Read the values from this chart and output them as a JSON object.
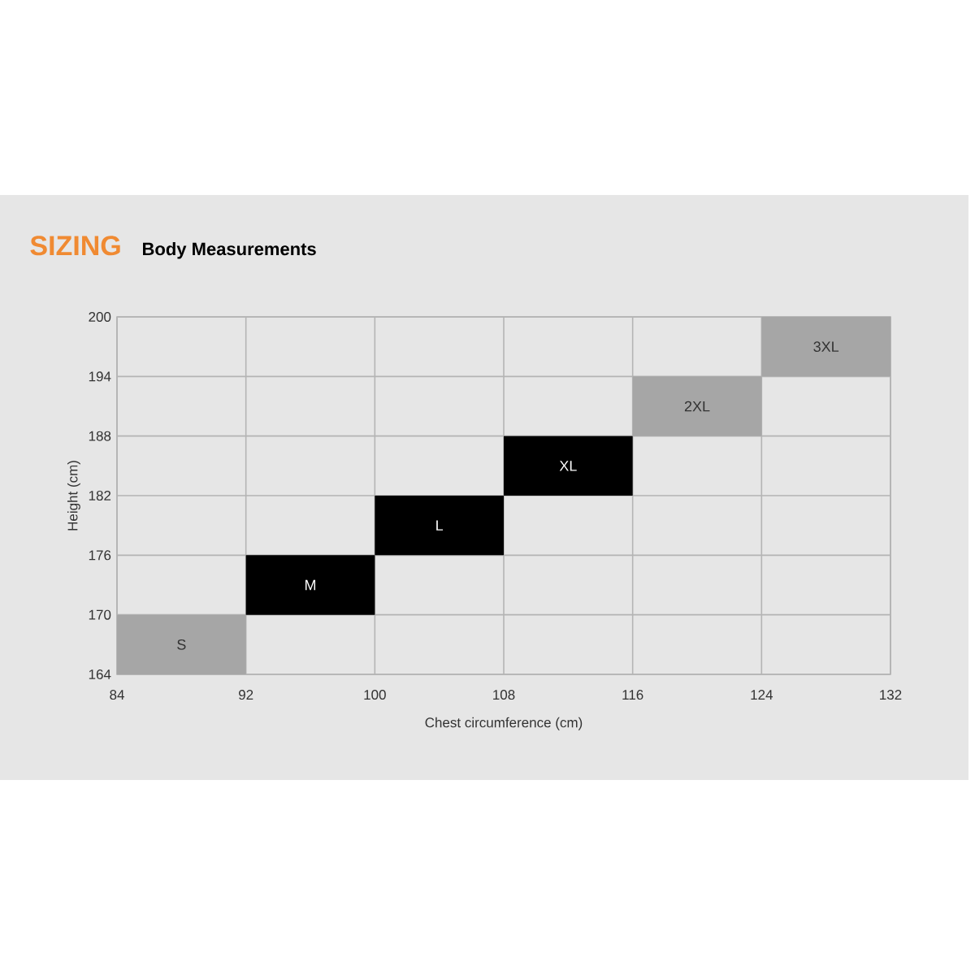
{
  "chart_data": {
    "type": "bar",
    "title": "SIZING",
    "subtitle": "Body Measurements",
    "xlabel": "Chest circumference (cm)",
    "ylabel": "Height (cm)",
    "x": [
      88,
      96,
      104,
      112,
      120,
      128
    ],
    "base": [
      164,
      170,
      176,
      182,
      188,
      194
    ],
    "values": [
      6,
      6,
      6,
      6,
      6,
      6
    ],
    "colors": [
      "#a6a6a6",
      "#000000",
      "#000000",
      "#000000",
      "#a6a6a6",
      "#a6a6a6"
    ],
    "annotations": [
      {
        "text": "S",
        "x": 88,
        "y": 170
      },
      {
        "text": "M",
        "x": 96,
        "y": 176
      },
      {
        "text": "L",
        "x": 104,
        "y": 182
      },
      {
        "text": "XL",
        "x": 112,
        "y": 188
      },
      {
        "text": "2XL",
        "x": 120,
        "y": 194
      },
      {
        "text": "3XL",
        "x": 128,
        "y": 200
      }
    ],
    "xlim": [
      84,
      132
    ],
    "xticks": [
      84,
      92,
      100,
      108,
      116,
      124,
      132
    ],
    "ylim": [
      164,
      200
    ],
    "yticks": [
      164,
      170,
      176,
      182,
      188,
      194,
      200
    ],
    "grid": true
  }
}
